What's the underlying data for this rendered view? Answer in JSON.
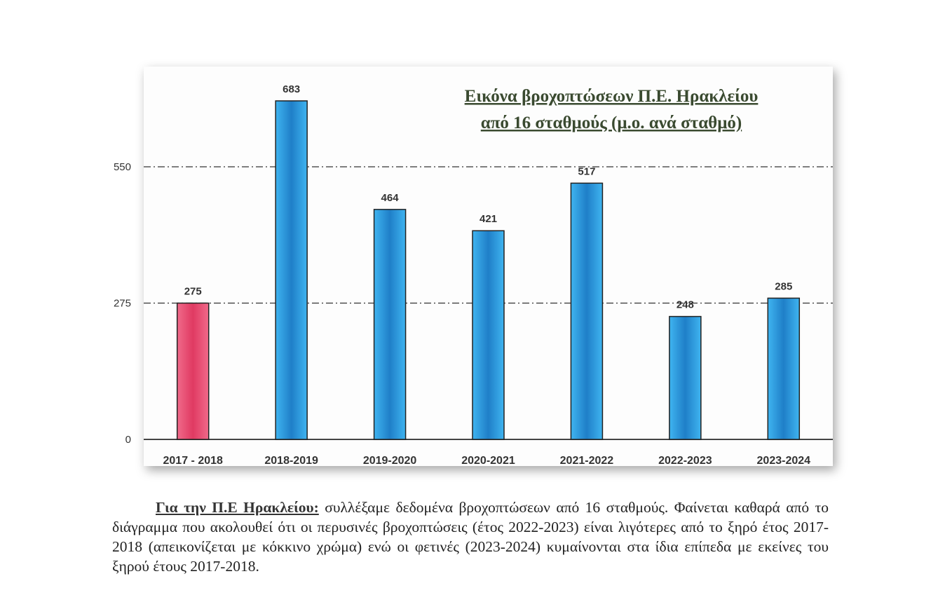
{
  "chart_data": {
    "type": "bar",
    "title_line1": "Εικόνα βροχοπτώσεων Π.Ε. Ηρακλείου",
    "title_line2": "από 16 σταθμούς (μ.ο. ανά σταθμό)",
    "categories": [
      "2017 - 2018",
      "2018-2019",
      "2019-2020",
      "2020-2021",
      "2021-2022",
      "2022-2023",
      "2023-2024"
    ],
    "values": [
      275,
      683,
      464,
      421,
      517,
      248,
      285
    ],
    "bar_colors": [
      "#e8476e",
      "#2b9fe0",
      "#2b9fe0",
      "#2b9fe0",
      "#2b9fe0",
      "#2b9fe0",
      "#2b9fe0"
    ],
    "highlight_color": "#e8476e",
    "bar_color": "#2b9fe0",
    "yticks": [
      0,
      275,
      550
    ],
    "ylim": [
      0,
      700
    ],
    "grid": "dash-dot at 275 and 550",
    "xlabel": "",
    "ylabel": ""
  },
  "paragraph": {
    "lead": "Για την Π.Ε Ηρακλείου:",
    "text": " συλλέξαμε δεδομένα βροχοπτώσεων από 16 σταθμούς. Φαίνεται καθαρά από το διάγραμμα που ακολουθεί ότι οι περυσινές βροχοπτώσεις (έτος 2022-2023) είναι λιγότερες από το ξηρό έτος 2017-2018 (απεικονίζεται με κόκκινο χρώμα) ενώ οι φετινές (2023-2024) κυμαίνονται στα ίδια επίπεδα με εκείνες του ξηρού έτους 2017-2018."
  }
}
